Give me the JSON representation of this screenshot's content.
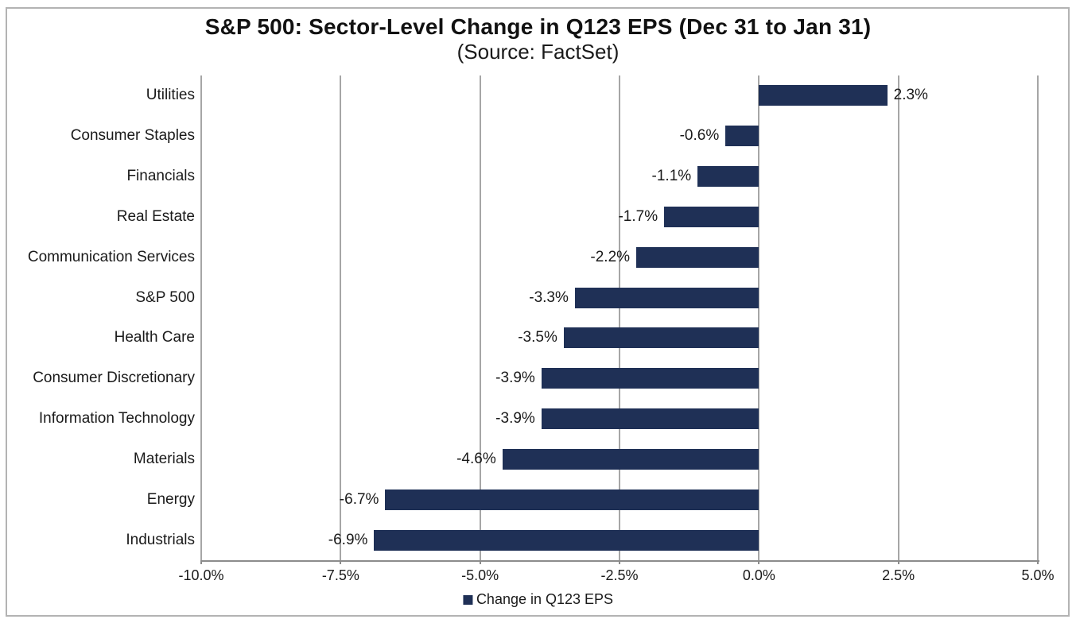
{
  "window": {
    "background": "#FFFFFF",
    "frame_border_color": "#B3B3B3"
  },
  "chart_data": {
    "type": "bar",
    "orientation": "horizontal",
    "title": "S&P 500: Sector-Level Change in Q123 EPS (Dec 31 to Jan 31)",
    "subtitle": "(Source: FactSet)",
    "categories": [
      "Utilities",
      "Consumer Staples",
      "Financials",
      "Real Estate",
      "Communication Services",
      "S&P 500",
      "Health Care",
      "Consumer Discretionary",
      "Information Technology",
      "Materials",
      "Energy",
      "Industrials"
    ],
    "values": [
      2.3,
      -0.6,
      -1.1,
      -1.7,
      -2.2,
      -3.3,
      -3.5,
      -3.9,
      -3.9,
      -4.6,
      -6.7,
      -6.9
    ],
    "value_labels": [
      "2.3%",
      "-0.6%",
      "-1.1%",
      "-1.7%",
      "-2.2%",
      "-3.3%",
      "-3.5%",
      "-3.9%",
      "-3.9%",
      "-4.6%",
      "-6.7%",
      "-6.9%"
    ],
    "xlim": [
      -10,
      5
    ],
    "x_ticks": [
      -10,
      -7.5,
      -5,
      -2.5,
      0,
      2.5,
      5
    ],
    "x_tick_labels": [
      "-10.0%",
      "-7.5%",
      "-5.0%",
      "-2.5%",
      "0.0%",
      "2.5%",
      "5.0%"
    ],
    "grid": "vertical-on",
    "legend_position": "bottom-center",
    "legend": [
      {
        "label": "Change in Q123 EPS",
        "color": "#1F3056"
      }
    ],
    "bar_color": "#1F3056",
    "gridline_color": "#A6A6A6",
    "axis_line_color": "#8C8C8C",
    "text_color": "#1A1A1A"
  }
}
